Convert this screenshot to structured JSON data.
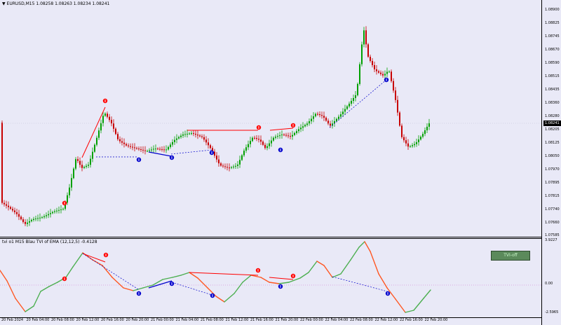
{
  "main": {
    "symbol_title": "EURUSD,M15",
    "ohlc": "1.08258 1.08263 1.08234 1.08241",
    "current_price": "1.08241",
    "price_axis": [
      "1.08900",
      "1.08825",
      "1.08745",
      "1.08670",
      "1.08590",
      "1.08515",
      "1.08435",
      "1.08360",
      "1.08280",
      "1.08205",
      "1.08125",
      "1.08050",
      "1.07970",
      "1.07895",
      "1.07815",
      "1.07740",
      "1.07660",
      "1.07585"
    ]
  },
  "indicator": {
    "title": "tvi o1 M15 Blau TVI of EMA (12,12,5) -0.4128",
    "axis_top": "3.9227",
    "axis_zero": "0.00",
    "axis_bottom": "-2.5965",
    "button_label": "TVI-off"
  },
  "time_axis": [
    "20 Feb 2024",
    "20 Feb 04:00",
    "20 Feb 08:00",
    "20 Feb 12:00",
    "20 Feb 16:00",
    "20 Feb 20:00",
    "21 Feb 00:00",
    "21 Feb 04:00",
    "21 Feb 08:00",
    "21 Feb 12:00",
    "21 Feb 16:00",
    "21 Feb 20:00",
    "22 Feb 00:00",
    "22 Feb 04:00",
    "22 Feb 08:00",
    "22 Feb 12:00",
    "22 Feb 16:00",
    "22 Feb 20:00"
  ],
  "colors": {
    "background": "#e9e9f7",
    "bull": "#00a000",
    "bear": "#c80000",
    "line_up": "#4caf50",
    "line_down": "#ff5722",
    "divergence_bear": "#ff0000",
    "divergence_bull": "#0000cc"
  }
}
